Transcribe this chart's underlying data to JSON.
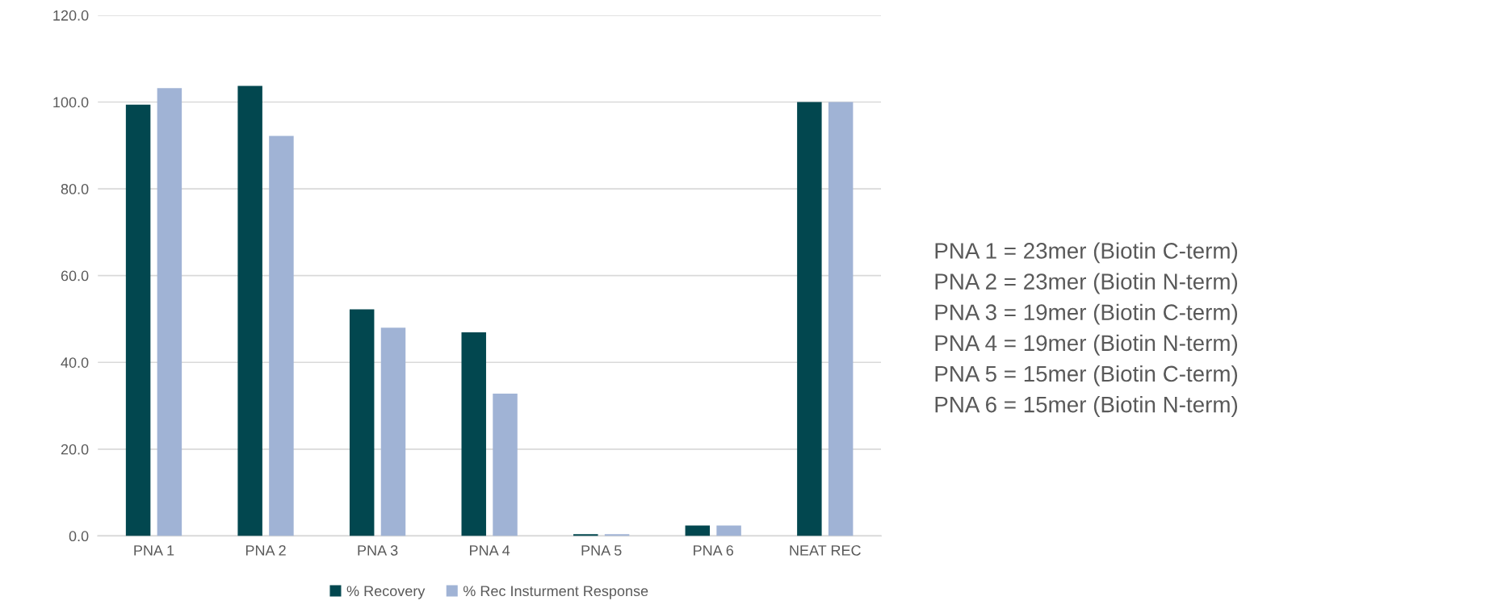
{
  "chart_data": {
    "type": "bar",
    "categories": [
      "PNA 1",
      "PNA 2",
      "PNA 3",
      "PNA 4",
      "PNA 5",
      "PNA 6",
      "NEAT REC"
    ],
    "series": [
      {
        "name": "% Recovery",
        "color": "#02474f",
        "values": [
          99.4,
          103.7,
          52.2,
          46.9,
          0.4,
          2.4,
          100.0
        ]
      },
      {
        "name": "% Rec Insturment Response",
        "color": "#a0b3d5",
        "values": [
          103.2,
          92.2,
          48.0,
          32.8,
          0.4,
          2.4,
          100.0
        ]
      }
    ],
    "ylim": [
      0,
      120
    ],
    "yticks": [
      {
        "value": 0,
        "label": "0.0"
      },
      {
        "value": 20,
        "label": "20.0"
      },
      {
        "value": 40,
        "label": "40.0"
      },
      {
        "value": 60,
        "label": "60.0"
      },
      {
        "value": 80,
        "label": "80.0"
      },
      {
        "value": 100,
        "label": "100.0"
      },
      {
        "value": 120,
        "label": "120.0"
      }
    ],
    "grid": "y",
    "legend": "bottom",
    "annotations": [
      "PNA 1 = 23mer (Biotin C-term)",
      "PNA 2 = 23mer (Biotin N-term)",
      "PNA 3 = 19mer (Biotin C-term)",
      "PNA 4 = 19mer (Biotin N-term)",
      "PNA 5 = 15mer (Biotin C-term)",
      "PNA 6 = 15mer (Biotin N-term)"
    ]
  }
}
